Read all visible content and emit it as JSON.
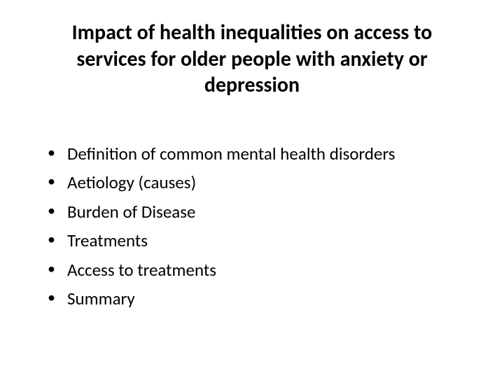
{
  "slide": {
    "title": "Impact of health inequalities on access to services for older people with anxiety or depression",
    "bullets": [
      "Definition of common mental health disorders",
      "Aetiology (causes)",
      "Burden of Disease",
      "Treatments",
      "Access to treatments",
      "Summary"
    ],
    "styling": {
      "background_color": "#ffffff",
      "title_fontsize": 30,
      "title_weight": "bold",
      "title_color": "#000000",
      "title_align": "center",
      "bullet_fontsize": 25,
      "bullet_color": "#000000",
      "bullet_marker": "disc",
      "font_family": "Calibri"
    }
  }
}
